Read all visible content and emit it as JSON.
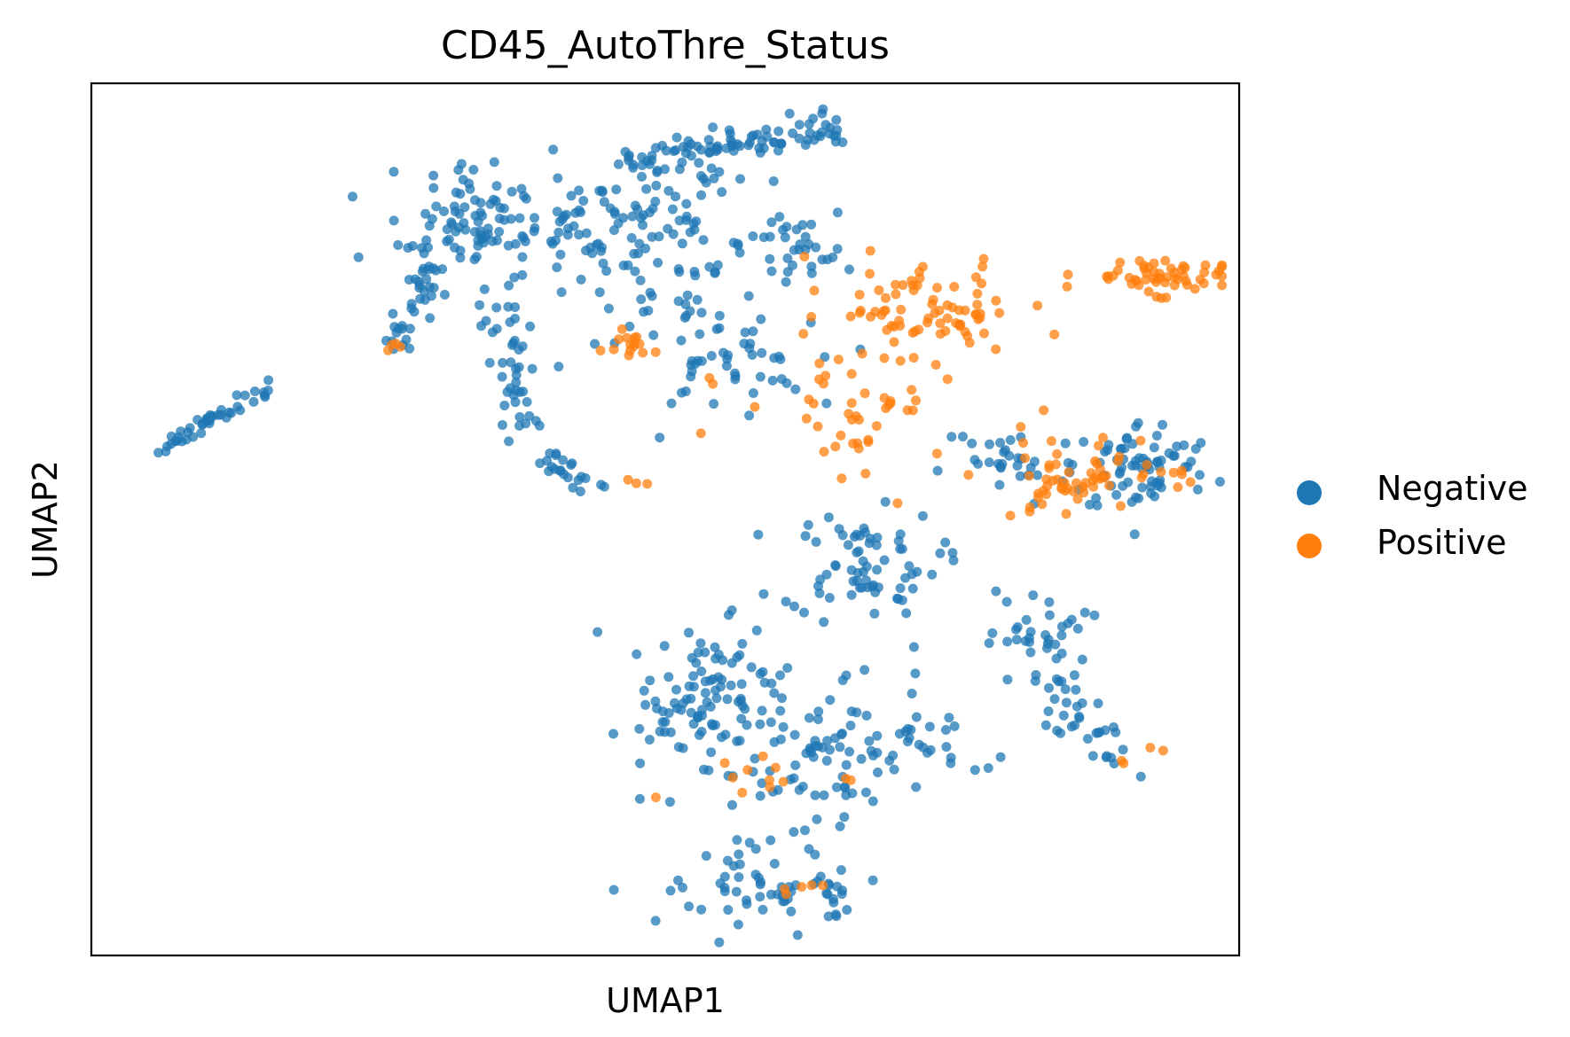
{
  "chart_data": {
    "type": "scatter",
    "title": "CD45_AutoThre_Status",
    "xlabel": "UMAP1",
    "ylabel": "UMAP2",
    "xlim": [
      0,
      100
    ],
    "ylim": [
      0,
      100
    ],
    "grid": false,
    "ticks": false,
    "legend_position": "right",
    "series": [
      {
        "name": "Negative",
        "color": "#1f77b4",
        "clusters": [
          {
            "x0": 4.7,
            "y0": 56.8,
            "x1": 15.6,
            "y1": 65.6,
            "spread": 0.5,
            "n": 44
          },
          {
            "x0": 26.0,
            "y0": 70.0,
            "x1": 30.0,
            "y1": 78.5,
            "spread": 0.8,
            "n": 35
          },
          {
            "cx": 32.5,
            "cy": 84.0,
            "sx": 4.0,
            "sy": 2.3,
            "n": 80
          },
          {
            "x0": 35.9,
            "y0": 75.7,
            "x1": 37.6,
            "y1": 60.3,
            "spread": 1.1,
            "n": 45
          },
          {
            "x0": 39.1,
            "y0": 57.4,
            "x1": 43.7,
            "y1": 54.0,
            "spread": 0.7,
            "n": 22
          },
          {
            "cx": 42.5,
            "cy": 84.3,
            "sx": 4.0,
            "sy": 3.6,
            "n": 60
          },
          {
            "x0": 46.0,
            "y0": 91.0,
            "x1": 65.0,
            "y1": 94.8,
            "spread": 0.9,
            "n": 90
          },
          {
            "cx": 52.5,
            "cy": 81.5,
            "sx": 5.2,
            "sy": 5.5,
            "n": 95
          },
          {
            "cx": 55.0,
            "cy": 67.5,
            "sx": 3.8,
            "sy": 2.5,
            "n": 42
          },
          {
            "cx": 61.5,
            "cy": 80.5,
            "sx": 2.4,
            "sy": 2.0,
            "n": 25
          },
          {
            "cx": 80.0,
            "cy": 56.5,
            "sx": 3.0,
            "sy": 2.6,
            "n": 30
          },
          {
            "cx": 91.5,
            "cy": 56.0,
            "sx": 3.2,
            "sy": 2.7,
            "n": 75
          },
          {
            "cx": 67.0,
            "cy": 45.0,
            "sx": 3.4,
            "sy": 3.0,
            "n": 70
          },
          {
            "cx": 82.5,
            "cy": 36.0,
            "sx": 2.2,
            "sy": 3.0,
            "n": 40
          },
          {
            "x0": 83.5,
            "y0": 30.0,
            "x1": 89.5,
            "y1": 22.5,
            "spread": 1.2,
            "n": 30
          },
          {
            "cx": 53.0,
            "cy": 30.0,
            "sx": 3.4,
            "sy": 4.2,
            "n": 95
          },
          {
            "cx": 63.5,
            "cy": 22.5,
            "sx": 5.0,
            "sy": 6.0,
            "n": 90
          },
          {
            "cx": 58.5,
            "cy": 8.0,
            "sx": 4.6,
            "sy": 2.0,
            "n": 60
          },
          {
            "cx": 71.5,
            "cy": 23.5,
            "sx": 3.5,
            "sy": 2.4,
            "n": 25
          }
        ]
      },
      {
        "name": "Positive",
        "color": "#ff7f0e",
        "clusters": [
          {
            "cx": 26.3,
            "cy": 70.0,
            "sx": 0.4,
            "sy": 0.5,
            "n": 4
          },
          {
            "cx": 47.0,
            "cy": 70.2,
            "sx": 0.9,
            "sy": 0.8,
            "n": 15
          },
          {
            "cx": 65.0,
            "cy": 65.0,
            "sx": 5.0,
            "sy": 5.5,
            "n": 35
          },
          {
            "cx": 73.0,
            "cy": 74.0,
            "sx": 4.2,
            "sy": 2.5,
            "n": 70
          },
          {
            "cx": 93.0,
            "cy": 78.0,
            "sx": 3.2,
            "sy": 1.0,
            "n": 55
          },
          {
            "cx": 84.5,
            "cy": 54.5,
            "sx": 3.8,
            "sy": 2.7,
            "n": 55
          },
          {
            "cx": 69.0,
            "cy": 62.0,
            "sx": 3.0,
            "sy": 3.0,
            "n": 20
          },
          {
            "cx": 57.0,
            "cy": 20.0,
            "sx": 3.5,
            "sy": 1.5,
            "n": 12
          },
          {
            "cx": 47.5,
            "cy": 54.5,
            "sx": 0.6,
            "sy": 0.4,
            "n": 3
          },
          {
            "cx": 94.0,
            "cy": 54.5,
            "sx": 1.2,
            "sy": 0.8,
            "n": 8
          },
          {
            "cx": 90.0,
            "cy": 23.0,
            "sx": 2.0,
            "sy": 0.8,
            "n": 4
          },
          {
            "cx": 63.5,
            "cy": 8.0,
            "sx": 2.5,
            "sy": 1.0,
            "n": 5
          }
        ]
      }
    ]
  }
}
